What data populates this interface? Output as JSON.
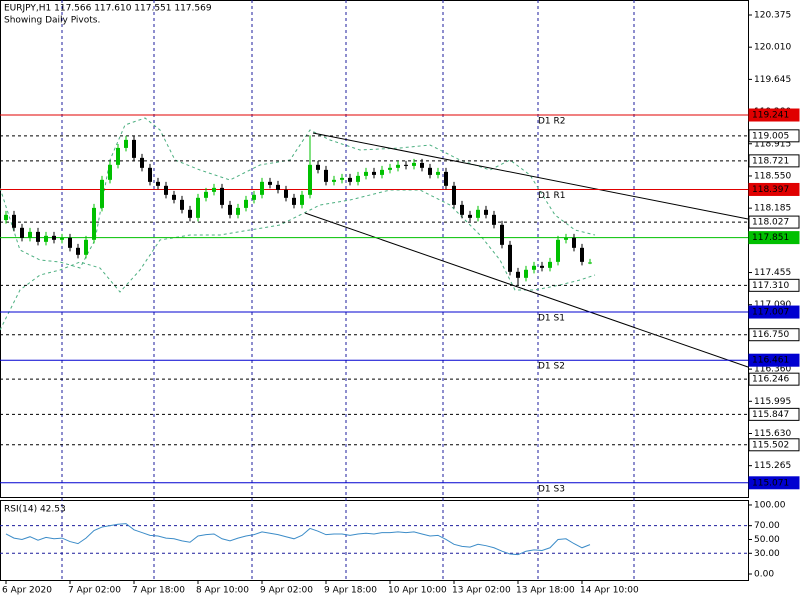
{
  "chart_data": [
    {
      "type": "candlestick",
      "title": "EURJPY,H1  117.566 117.610 117.551 117.569",
      "subtitle": "Showing Daily Pivots.",
      "categories": [
        "6 Apr 2020",
        null,
        null,
        null,
        null,
        null,
        null,
        null,
        "7 Apr 02:00",
        null,
        null,
        null,
        null,
        null,
        null,
        null,
        "7 Apr 18:00",
        null,
        null,
        null,
        null,
        null,
        null,
        null,
        "8 Apr 10:00",
        null,
        null,
        null,
        null,
        null,
        null,
        null,
        "9 Apr 02:00",
        null,
        null,
        null,
        null,
        null,
        null,
        null,
        "9 Apr 18:00",
        null,
        null,
        null,
        null,
        null,
        null,
        null,
        "10 Apr 10:00",
        null,
        null,
        null,
        null,
        null,
        null,
        null,
        "13 Apr 02:00",
        null,
        null,
        null,
        null,
        null,
        null,
        null,
        "13 Apr 18:00",
        null,
        null,
        null,
        null,
        null,
        null,
        null,
        "14 Apr 10:00",
        null
      ],
      "open": [
        118.05,
        118.109,
        117.962,
        117.848,
        117.916,
        117.803,
        117.871,
        117.826,
        117.848,
        117.735,
        117.656,
        117.826,
        118.188,
        118.506,
        118.676,
        118.868,
        118.959,
        118.755,
        118.642,
        118.483,
        118.438,
        118.336,
        118.279,
        118.166,
        118.075,
        118.302,
        118.37,
        118.415,
        118.222,
        118.109,
        118.188,
        118.279,
        118.336,
        118.483,
        118.449,
        118.392,
        118.302,
        118.222,
        118.336,
        118.676,
        118.619,
        118.483,
        118.506,
        118.528,
        118.483,
        118.551,
        118.596,
        118.562,
        118.619,
        118.642,
        118.676,
        118.664,
        118.698,
        118.642,
        118.562,
        118.596,
        118.438,
        118.222,
        118.109,
        118.075,
        118.166,
        118.109,
        117.996,
        117.769,
        117.463,
        117.395,
        117.486,
        117.531,
        117.508,
        117.576,
        117.826,
        117.848,
        117.735,
        117.566
      ],
      "high": [
        118.154,
        118.154,
        118.007,
        117.961,
        117.961,
        117.916,
        117.916,
        117.893,
        117.893,
        117.78,
        117.871,
        118.233,
        118.551,
        118.721,
        118.913,
        119.004,
        119.004,
        118.8,
        118.687,
        118.528,
        118.483,
        118.381,
        118.324,
        118.211,
        118.347,
        118.415,
        118.46,
        118.46,
        118.267,
        118.233,
        118.324,
        118.381,
        118.528,
        118.528,
        118.494,
        118.437,
        118.347,
        118.381,
        119.01,
        118.721,
        118.664,
        118.551,
        118.573,
        118.573,
        118.596,
        118.641,
        118.641,
        118.664,
        118.687,
        118.721,
        118.721,
        118.743,
        118.743,
        118.687,
        118.641,
        118.641,
        118.483,
        118.267,
        118.154,
        118.211,
        118.211,
        118.154,
        118.041,
        117.814,
        117.508,
        117.531,
        117.576,
        117.576,
        117.621,
        117.871,
        117.893,
        117.893,
        117.78,
        117.61
      ],
      "low": [
        118.01,
        117.922,
        117.808,
        117.808,
        117.763,
        117.763,
        117.786,
        117.786,
        117.695,
        117.616,
        117.616,
        117.786,
        118.148,
        118.466,
        118.636,
        118.828,
        118.715,
        118.602,
        118.443,
        118.398,
        118.296,
        118.239,
        118.126,
        118.035,
        118.035,
        118.262,
        118.33,
        118.182,
        118.069,
        118.069,
        118.148,
        118.239,
        118.296,
        118.409,
        118.352,
        118.262,
        118.182,
        118.182,
        118.296,
        118.579,
        118.443,
        118.443,
        118.466,
        118.443,
        118.443,
        118.511,
        118.522,
        118.522,
        118.579,
        118.602,
        118.624,
        118.624,
        118.602,
        118.522,
        118.522,
        118.398,
        118.182,
        118.069,
        118.035,
        118.035,
        118.069,
        117.956,
        117.729,
        117.423,
        117.31,
        117.355,
        117.446,
        117.468,
        117.468,
        117.536,
        117.786,
        117.695,
        117.536,
        117.551
      ],
      "close": [
        118.109,
        117.962,
        117.848,
        117.916,
        117.803,
        117.871,
        117.826,
        117.848,
        117.735,
        117.656,
        117.826,
        118.188,
        118.506,
        118.676,
        118.868,
        118.959,
        118.755,
        118.642,
        118.483,
        118.438,
        118.336,
        118.279,
        118.166,
        118.075,
        118.302,
        118.37,
        118.415,
        118.222,
        118.109,
        118.188,
        118.279,
        118.336,
        118.483,
        118.449,
        118.392,
        118.302,
        118.222,
        118.336,
        118.676,
        118.619,
        118.483,
        118.506,
        118.528,
        118.483,
        118.551,
        118.596,
        118.562,
        118.619,
        118.642,
        118.676,
        118.664,
        118.698,
        118.642,
        118.562,
        118.596,
        118.438,
        118.222,
        118.109,
        118.075,
        118.166,
        118.109,
        117.996,
        117.769,
        117.463,
        117.395,
        117.486,
        117.531,
        117.508,
        117.576,
        117.826,
        117.848,
        117.735,
        117.576,
        117.569
      ],
      "bull_color": "#00c000",
      "bear_color": "#000000",
      "ylim": [
        114.91,
        120.545
      ],
      "yticks": [
        120.375,
        {
          "value": 120.01,
          "label": "120.010"
        },
        119.645,
        {
          "value": 119.28,
          "label": "119.280"
        },
        118.915,
        {
          "value": 118.55,
          "label": "118.550"
        },
        118.185,
        117.455,
        {
          "value": 117.09,
          "label": "117.090"
        },
        {
          "value": 116.36,
          "label": "116.360"
        },
        115.995,
        {
          "value": 115.63,
          "label": "115.630"
        },
        115.265
      ],
      "levels": [
        {
          "price": 119.241,
          "text": "D1 R2",
          "color": "#e00000"
        },
        {
          "price": 119.005,
          "color": "#000000",
          "dashed": true
        },
        {
          "price": 118.721,
          "color": "#000000",
          "dashed": true
        },
        {
          "price": 118.397,
          "text": "D1 R1",
          "color": "#e00000"
        },
        {
          "price": 118.027,
          "color": "#000000",
          "dashed": true
        },
        {
          "price": 117.851,
          "color": "#00c000"
        },
        {
          "price": {
            "value": 117.31,
            "label": "117.310"
          },
          "color": "#000000",
          "dashed": true
        },
        {
          "price": 117.007,
          "text": "D1 S1",
          "color": "#0000d0"
        },
        {
          "price": {
            "value": 116.75,
            "label": "116.750"
          },
          "color": "#000000",
          "dashed": true
        },
        {
          "price": 116.461,
          "text": "D1 S2",
          "color": "#0000d0"
        },
        {
          "price": 116.246,
          "color": "#000000",
          "dashed": true
        },
        {
          "price": 115.847,
          "color": "#000000",
          "dashed": true
        },
        {
          "price": 115.502,
          "color": "#000000",
          "dashed": true
        },
        {
          "price": 115.071,
          "text": "D1 S3",
          "color": "#0000d0"
        }
      ]
    },
    {
      "type": "line",
      "title": "RSI(14) 42.53",
      "color": "#3c8cc8",
      "values": [
        58,
        52,
        50,
        54,
        49,
        53,
        51,
        52,
        47,
        44,
        52,
        63,
        68,
        70,
        72,
        73,
        64,
        60,
        56,
        55,
        52,
        51,
        48,
        46,
        55,
        57,
        58,
        51,
        48,
        52,
        55,
        57,
        61,
        59,
        57,
        54,
        51,
        56,
        66,
        62,
        57,
        58,
        58,
        56,
        58,
        59,
        58,
        60,
        60,
        61,
        60,
        61,
        58,
        55,
        56,
        50,
        43,
        40,
        39,
        43,
        41,
        38,
        33,
        29,
        28,
        33,
        35,
        34,
        38,
        50,
        51,
        44,
        38,
        42.53
      ],
      "ylim": [
        -8.7,
        107.2
      ],
      "yticks": [
        {
          "value": 100,
          "label": "100.00"
        },
        {
          "value": 70,
          "label": "70.00"
        },
        {
          "value": 50,
          "label": "50.00"
        },
        {
          "value": 30,
          "label": "30.00"
        },
        {
          "value": 0,
          "label": "0.00"
        }
      ],
      "levels": [
        70,
        30
      ]
    }
  ]
}
